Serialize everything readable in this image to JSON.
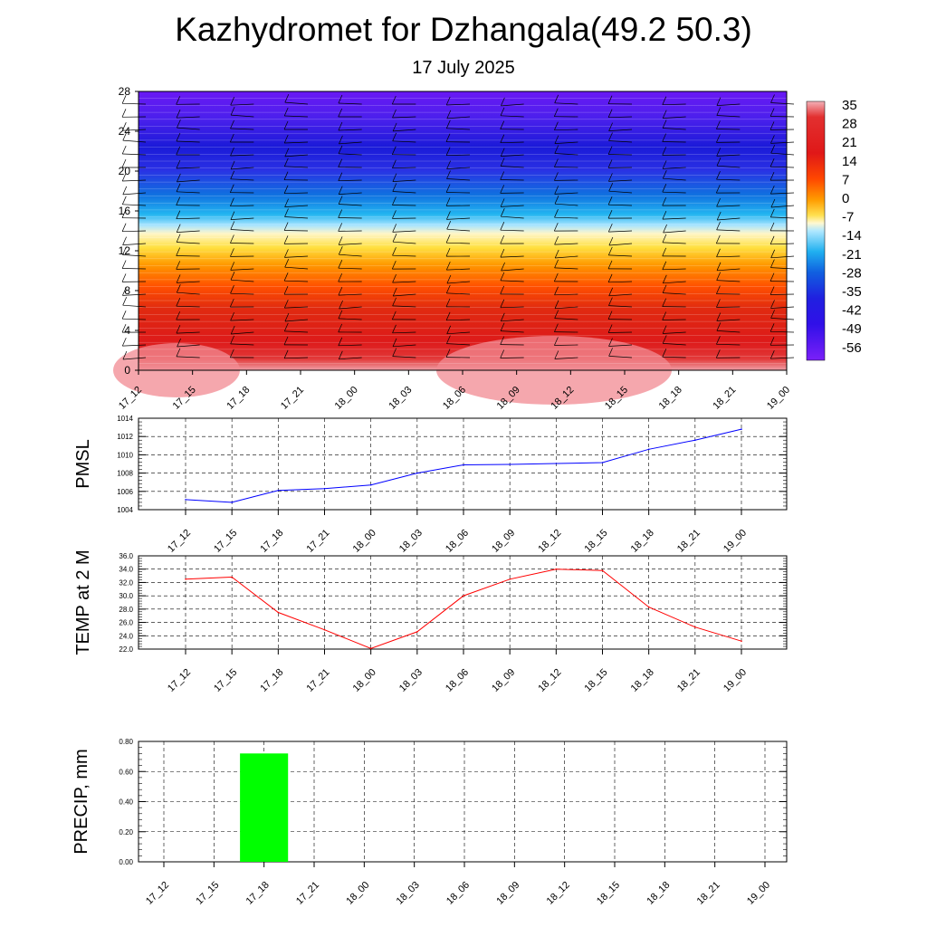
{
  "header": {
    "title": "Kazhydromet for Dzhangala(49.2 50.3)",
    "subtitle": "17 July 2025"
  },
  "chart_data": [
    {
      "id": "temperature-cross-section",
      "type": "heatmap",
      "x_ticks": [
        "17_12",
        "17_15",
        "17_18",
        "17_21",
        "18_00",
        "18_03",
        "18_06",
        "18_09",
        "18_12",
        "18_15",
        "18_18",
        "18_21",
        "19_00"
      ],
      "y_ticks": [
        "0",
        "4",
        "8",
        "12",
        "16",
        "20",
        "24",
        "28"
      ],
      "ylim": [
        0,
        28
      ],
      "colorbar_labels": [
        "35",
        "28",
        "21",
        "14",
        "7",
        "0",
        "-7",
        "-14",
        "-21",
        "-28",
        "-35",
        "-42",
        "-49",
        "-56"
      ],
      "colorscale": [
        "#f0a0a8",
        "#e02020",
        "#e03010",
        "#ff6000",
        "#ffa000",
        "#ffe040",
        "#fffbd0",
        "#a0e0ff",
        "#20b0f0",
        "#1060e0",
        "#2020e0",
        "#6010f0"
      ],
      "wind_barbs": true
    },
    {
      "id": "pmsl",
      "type": "line",
      "ylabel": "PMSL",
      "x": [
        "17_12",
        "17_15",
        "17_18",
        "17_21",
        "18_00",
        "18_03",
        "18_06",
        "18_09",
        "18_12",
        "18_15",
        "18_18",
        "18_21",
        "19_00"
      ],
      "values": [
        1005.1,
        1004.8,
        1006.1,
        1006.3,
        1006.7,
        1008.0,
        1008.9,
        1008.95,
        1009.05,
        1009.15,
        1010.6,
        1011.6,
        1012.8
      ],
      "ylim": [
        1004,
        1014
      ],
      "y_ticks": [
        "1004",
        "1006",
        "1008",
        "1010",
        "1012",
        "1014"
      ],
      "color": "#0000ff",
      "grid": true
    },
    {
      "id": "temp-2m",
      "type": "line",
      "ylabel": "TEMP at 2 M",
      "x": [
        "17_12",
        "17_15",
        "17_18",
        "17_21",
        "18_00",
        "18_03",
        "18_06",
        "18_09",
        "18_12",
        "18_15",
        "18_18",
        "18_21",
        "19_00"
      ],
      "values": [
        32.5,
        32.8,
        27.5,
        24.9,
        22.1,
        24.6,
        30.0,
        32.5,
        34.0,
        33.8,
        28.3,
        25.3,
        23.2
      ],
      "ylim": [
        22,
        36
      ],
      "y_ticks": [
        "22.0",
        "24.0",
        "26.0",
        "28.0",
        "30.0",
        "32.0",
        "34.0",
        "36.0"
      ],
      "color": "#ff0000",
      "grid": true
    },
    {
      "id": "precip",
      "type": "bar",
      "ylabel": "PRECIP, mm",
      "categories": [
        "17_12",
        "17_15",
        "17_18",
        "17_21",
        "18_00",
        "18_03",
        "18_06",
        "18_09",
        "18_12",
        "18_15",
        "18_18",
        "18_21",
        "19_00"
      ],
      "values": [
        0,
        0,
        0.72,
        0,
        0,
        0,
        0,
        0,
        0,
        0,
        0,
        0,
        0
      ],
      "ylim": [
        0,
        0.8
      ],
      "y_ticks": [
        "0.00",
        "0.20",
        "0.40",
        "0.60",
        "0.80"
      ],
      "color": "#00ff00",
      "grid": true
    }
  ]
}
